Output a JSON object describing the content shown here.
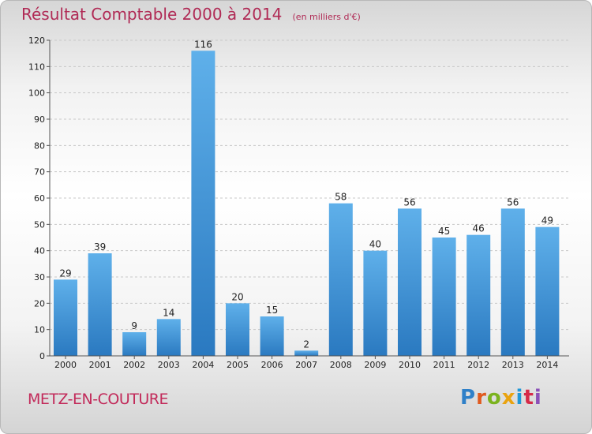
{
  "chart_data": {
    "type": "bar",
    "title": "Résultat Comptable 2000 à 2014",
    "subtitle": "(en milliers d'€)",
    "categories": [
      "2000",
      "2001",
      "2002",
      "2003",
      "2004",
      "2005",
      "2006",
      "2007",
      "2008",
      "2009",
      "2010",
      "2011",
      "2012",
      "2013",
      "2014"
    ],
    "values": [
      29,
      39,
      9,
      14,
      116,
      20,
      15,
      2,
      58,
      40,
      56,
      45,
      46,
      56,
      49
    ],
    "yticks": [
      0,
      10,
      20,
      30,
      40,
      50,
      60,
      70,
      80,
      90,
      100,
      110,
      120
    ],
    "ylim": [
      0,
      120
    ],
    "xlabel": "",
    "ylabel": "",
    "grid": true,
    "legend": "none"
  },
  "footer": {
    "commune": "METZ-EN-COUTURE",
    "logo_letters": [
      "P",
      "r",
      "o",
      "x",
      "i",
      "t",
      "i"
    ]
  },
  "colors": {
    "bar_top": "#5fb0ea",
    "bar_bottom": "#2a79c0",
    "title": "#b02a55",
    "commune": "#c22a5a"
  }
}
